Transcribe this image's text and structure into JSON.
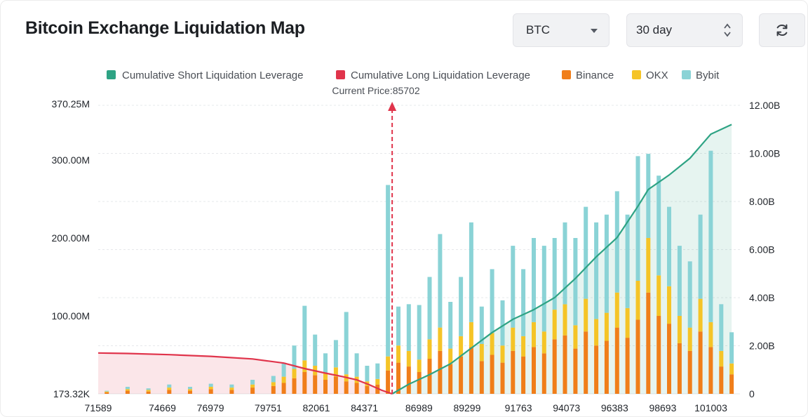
{
  "page": {
    "title": "Bitcoin Exchange Liquidation Map"
  },
  "controls": {
    "coin": {
      "value": "BTC",
      "icon": "chevron-down-icon"
    },
    "range": {
      "value": "30 day",
      "icon": "up-down-icon"
    },
    "refresh": {
      "icon": "refresh-icon"
    }
  },
  "colors": {
    "short": "#2ea384",
    "long": "#e0344b",
    "binance": "#f07e1a",
    "okx": "#f5c427",
    "bybit": "#8ad3d6"
  },
  "chart_data": {
    "type": "bar",
    "legend": [
      "Cumulative Short Liquidation Leverage",
      "Cumulative Long Liquidation Leverage",
      "Binance",
      "OKX",
      "Bybit"
    ],
    "legend_position": "top",
    "current_price_label": "Current Price:85702",
    "current_price": 85702,
    "x_ticks": [
      "71589",
      "74669",
      "76979",
      "79751",
      "82061",
      "84371",
      "86989",
      "89299",
      "91763",
      "94073",
      "96383",
      "98693",
      "101003"
    ],
    "x_range": [
      71589,
      102400
    ],
    "y_left_ticks": [
      "370.25M",
      "300.00M",
      "200.00M",
      "100.00M",
      "173.32K"
    ],
    "y_left_range": [
      0,
      370250000
    ],
    "y_right_ticks": [
      "12.00B",
      "10.00B",
      "8.00B",
      "6.00B",
      "4.00B",
      "2.00B",
      "0"
    ],
    "y_right_range": [
      0,
      12000000000
    ],
    "grid": true,
    "series": [
      {
        "name": "Binance",
        "stack": "exchanges",
        "axis": "left",
        "x": [
          72000,
          73000,
          74000,
          75000,
          76000,
          77000,
          78000,
          79000,
          80000,
          80500,
          81000,
          81500,
          82000,
          82500,
          83000,
          83500,
          84000,
          84500,
          85000,
          85500,
          86000,
          86500,
          87000,
          87500,
          88000,
          88500,
          89000,
          89500,
          90000,
          90500,
          91000,
          91500,
          92000,
          92500,
          93000,
          93500,
          94000,
          94500,
          95000,
          95500,
          96000,
          96500,
          97000,
          97500,
          98000,
          98500,
          99000,
          99500,
          100000,
          100500,
          101000,
          101500,
          102000
        ],
        "values": [
          2000000,
          4000000,
          3000000,
          5000000,
          4000000,
          6000000,
          5000000,
          8000000,
          10000000,
          14000000,
          20000000,
          28000000,
          24000000,
          18000000,
          22000000,
          16000000,
          14000000,
          10000000,
          12000000,
          30000000,
          40000000,
          35000000,
          28000000,
          45000000,
          55000000,
          38000000,
          48000000,
          60000000,
          42000000,
          50000000,
          40000000,
          55000000,
          48000000,
          60000000,
          52000000,
          70000000,
          75000000,
          58000000,
          80000000,
          62000000,
          68000000,
          85000000,
          72000000,
          95000000,
          130000000,
          100000000,
          90000000,
          65000000,
          55000000,
          80000000,
          60000000,
          35000000,
          25000000
        ]
      },
      {
        "name": "OKX",
        "stack": "exchanges",
        "axis": "left",
        "x": [
          72000,
          73000,
          74000,
          75000,
          76000,
          77000,
          78000,
          79000,
          80000,
          80500,
          81000,
          81500,
          82000,
          82500,
          83000,
          83500,
          84000,
          84500,
          85000,
          85500,
          86000,
          86500,
          87000,
          87500,
          88000,
          88500,
          89000,
          89500,
          90000,
          90500,
          91000,
          91500,
          92000,
          92500,
          93000,
          93500,
          94000,
          94500,
          95000,
          95500,
          96000,
          96500,
          97000,
          97500,
          98000,
          98500,
          99000,
          99500,
          100000,
          100500,
          101000,
          101500,
          102000
        ],
        "values": [
          1000000,
          2000000,
          2000000,
          3000000,
          2000000,
          3000000,
          3000000,
          4000000,
          5000000,
          8000000,
          12000000,
          15000000,
          12000000,
          9000000,
          12000000,
          9000000,
          8000000,
          6000000,
          7000000,
          18000000,
          22000000,
          20000000,
          16000000,
          25000000,
          30000000,
          20000000,
          26000000,
          32000000,
          22000000,
          28000000,
          22000000,
          30000000,
          26000000,
          32000000,
          28000000,
          38000000,
          40000000,
          30000000,
          42000000,
          34000000,
          36000000,
          45000000,
          38000000,
          50000000,
          70000000,
          52000000,
          48000000,
          35000000,
          30000000,
          42000000,
          32000000,
          20000000,
          14000000
        ]
      },
      {
        "name": "Bybit",
        "stack": "exchanges",
        "axis": "left",
        "x": [
          72000,
          73000,
          74000,
          75000,
          76000,
          77000,
          78000,
          79000,
          80000,
          80500,
          81000,
          81500,
          82000,
          82500,
          83000,
          83500,
          84000,
          84500,
          85000,
          85500,
          86000,
          86500,
          87000,
          87500,
          88000,
          88500,
          89000,
          89500,
          90000,
          90500,
          91000,
          91500,
          92000,
          92500,
          93000,
          93500,
          94000,
          94500,
          95000,
          95500,
          96000,
          96500,
          97000,
          97500,
          98000,
          98500,
          99000,
          99500,
          100000,
          100500,
          101000,
          101500,
          102000
        ],
        "values": [
          1000000,
          3000000,
          2000000,
          4000000,
          3000000,
          4000000,
          4000000,
          6000000,
          8000000,
          18000000,
          30000000,
          70000000,
          40000000,
          25000000,
          35000000,
          80000000,
          30000000,
          20000000,
          20000000,
          220000000,
          50000000,
          60000000,
          70000000,
          80000000,
          120000000,
          60000000,
          76000000,
          128000000,
          48000000,
          82000000,
          58000000,
          105000000,
          86000000,
          108000000,
          110000000,
          92000000,
          105000000,
          112000000,
          118000000,
          124000000,
          126000000,
          130000000,
          120000000,
          160000000,
          108000000,
          128000000,
          102000000,
          90000000,
          85000000,
          108000000,
          220000000,
          60000000,
          40000000
        ]
      },
      {
        "name": "Cumulative Long Liquidation Leverage",
        "type": "area",
        "axis": "right",
        "x": [
          71589,
          73000,
          75000,
          77000,
          79000,
          80500,
          81500,
          82500,
          83300,
          84000,
          84600,
          85200,
          85702
        ],
        "values": [
          1700000000,
          1680000000,
          1630000000,
          1560000000,
          1450000000,
          1280000000,
          1050000000,
          860000000,
          720000000,
          580000000,
          380000000,
          150000000,
          0
        ]
      },
      {
        "name": "Cumulative Short Liquidation Leverage",
        "type": "area",
        "axis": "right",
        "x": [
          85702,
          86500,
          87500,
          88500,
          89500,
          90500,
          91500,
          92500,
          93500,
          94500,
          95500,
          96500,
          97500,
          98000,
          99000,
          100000,
          100500,
          101000,
          102000
        ],
        "values": [
          0,
          400000000,
          800000000,
          1250000000,
          1900000000,
          2550000000,
          3100000000,
          3500000000,
          4000000000,
          4800000000,
          5700000000,
          6500000000,
          7800000000,
          8500000000,
          9100000000,
          9800000000,
          10300000000,
          10800000000,
          11200000000
        ]
      }
    ]
  }
}
